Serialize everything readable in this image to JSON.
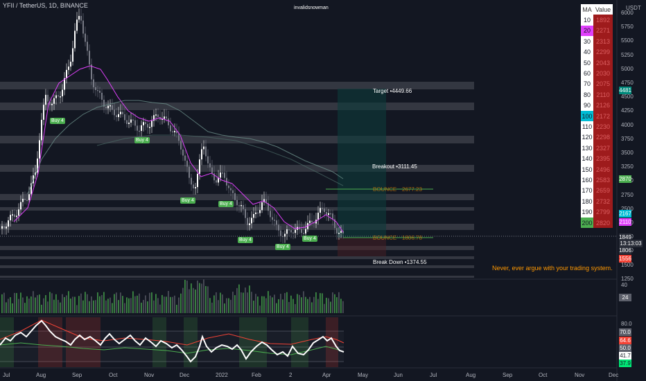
{
  "header": {
    "symbol": "YFII / TetherUS, 1D, BINANCE",
    "author": "invalidsnowman",
    "currency": "USDT"
  },
  "ma_table": {
    "header": [
      "MA",
      "Value"
    ],
    "rows": [
      {
        "period": "10",
        "value": "1892",
        "color": "#ffffff"
      },
      {
        "period": "20",
        "value": "2271",
        "color": "#e040fb"
      },
      {
        "period": "30",
        "value": "2313",
        "color": "#ffffff"
      },
      {
        "period": "40",
        "value": "2299",
        "color": "#ffffff"
      },
      {
        "period": "50",
        "value": "2043",
        "color": "#ffffff"
      },
      {
        "period": "60",
        "value": "2030",
        "color": "#ffffff"
      },
      {
        "period": "70",
        "value": "2075",
        "color": "#ffffff"
      },
      {
        "period": "80",
        "value": "2110",
        "color": "#ffffff"
      },
      {
        "period": "90",
        "value": "2126",
        "color": "#ffffff"
      },
      {
        "period": "100",
        "value": "2172",
        "color": "#00bcd4"
      },
      {
        "period": "110",
        "value": "2230",
        "color": "#ffffff"
      },
      {
        "period": "120",
        "value": "2298",
        "color": "#ffffff"
      },
      {
        "period": "130",
        "value": "2327",
        "color": "#ffffff"
      },
      {
        "period": "140",
        "value": "2395",
        "color": "#ffffff"
      },
      {
        "period": "150",
        "value": "2496",
        "color": "#ffffff"
      },
      {
        "period": "160",
        "value": "2583",
        "color": "#ffffff"
      },
      {
        "period": "170",
        "value": "2659",
        "color": "#ffffff"
      },
      {
        "period": "180",
        "value": "2732",
        "color": "#ffffff"
      },
      {
        "period": "190",
        "value": "2799",
        "color": "#ffffff"
      },
      {
        "period": "200",
        "value": "2820",
        "color": "#4caf50"
      }
    ]
  },
  "price_axis": [
    "6000",
    "5750",
    "5500",
    "5250",
    "5000",
    "4750",
    "4500",
    "4250",
    "4000",
    "3750",
    "3500",
    "3250",
    "3000",
    "2750",
    "2500",
    "2250",
    "2000",
    "1750",
    "1500",
    "1250"
  ],
  "price_badges": [
    {
      "text": "4481",
      "color": "#00897b"
    },
    {
      "text": "2870",
      "color": "#4caf50"
    },
    {
      "text": "2167",
      "color": "#00bcd4"
    },
    {
      "text": "2110",
      "color": "#e040fb"
    },
    {
      "text": "1849",
      "color": "#2a2e39"
    },
    {
      "text": "13:13:03",
      "color": "#2a2e39"
    },
    {
      "text": "1806",
      "color": "#2a2e39"
    },
    {
      "text": "1556",
      "color": "#f44336"
    }
  ],
  "volume_axis": [
    "40",
    "24"
  ],
  "rsi_axis": [
    "80.0",
    "70.0",
    "64.6",
    "50.0",
    "41.7",
    "37.9"
  ],
  "time_axis": [
    "Jul",
    "Aug",
    "Sep",
    "Oct",
    "Nov",
    "Dec",
    "2022",
    "Feb",
    "2",
    "Apr",
    "May",
    "Jun",
    "Jul",
    "Aug",
    "Sep",
    "Oct",
    "Nov",
    "Dec"
  ],
  "buy_labels": [
    "Buy 4",
    "Buy 4",
    "Buy 4",
    "Buy 4",
    "Buy 4",
    "Buy 4",
    "Buy 4"
  ],
  "zones": {
    "target": "Target •4449.66",
    "breakout": "Breakout •3111.45",
    "bounce_upper": "BOUNCE",
    "bounce_upper_value": "2677.23",
    "bounce_lower": "BOUNCE",
    "bounce_lower_value": "1806.78",
    "breakdown": "Break Down •1374.55"
  },
  "quote": "Never, ever argue with your trading system.",
  "colors": {
    "background": "#131722",
    "up": "#ffffff",
    "down": "#787b86",
    "ma20": "#e040fb",
    "ma100": "#00bcd4",
    "zone": "#3a3d47",
    "volume_up": "#4caf50",
    "volume_down": "#787b86",
    "rsi_line": "#ffffff",
    "rsi_signal_up": "#4caf50",
    "rsi_signal_down": "#f44336"
  }
}
